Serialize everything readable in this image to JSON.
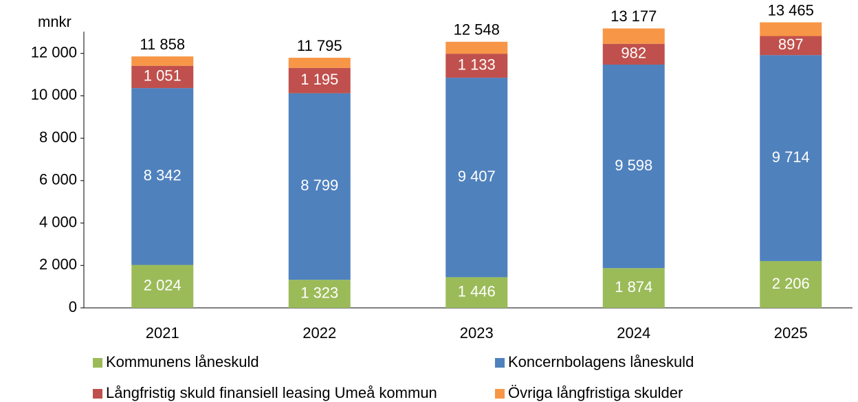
{
  "chart_data": {
    "type": "stacked_bar",
    "y_axis_label": "mnkr",
    "categories": [
      "2021",
      "2022",
      "2023",
      "2024",
      "2025"
    ],
    "series": [
      {
        "name": "Kommunens låneskuld",
        "color": "#9bbb59",
        "values": [
          2024,
          1323,
          1446,
          1874,
          2206
        ],
        "value_labels": [
          "2 024",
          "1 323",
          "1 446",
          "1 874",
          "2 206"
        ]
      },
      {
        "name": "Koncernbolagens låneskuld",
        "color": "#4f81bd",
        "values": [
          8342,
          8799,
          9407,
          9598,
          9714
        ],
        "value_labels": [
          "8 342",
          "8 799",
          "9 407",
          "9 598",
          "9 714"
        ]
      },
      {
        "name": "Långfristig skuld finansiell leasing Umeå kommun",
        "color": "#c0504d",
        "values": [
          1051,
          1195,
          1133,
          982,
          897
        ],
        "value_labels": [
          "1 051",
          "1 195",
          "1 133",
          "982",
          "897"
        ]
      },
      {
        "name": "Övriga långfristiga skulder",
        "color": "#f79646",
        "values": [
          441,
          478,
          562,
          723,
          648
        ]
      }
    ],
    "totals": [
      11858,
      11795,
      12548,
      13177,
      13465
    ],
    "total_labels": [
      "11 858",
      "11 795",
      "12 548",
      "13 177",
      "13 465"
    ],
    "ylim": [
      0,
      14000
    ],
    "yticks": [
      0,
      {
        "value": 2000,
        "label": "2 000"
      },
      {
        "value": 4000,
        "label": "4 000"
      },
      {
        "value": 6000,
        "label": "6 000"
      },
      {
        "value": 8000,
        "label": "8 000"
      },
      {
        "value": 10000,
        "label": "10 000"
      },
      {
        "value": 12000,
        "label": "12 000"
      }
    ],
    "grid": false,
    "legend": "bottom"
  }
}
